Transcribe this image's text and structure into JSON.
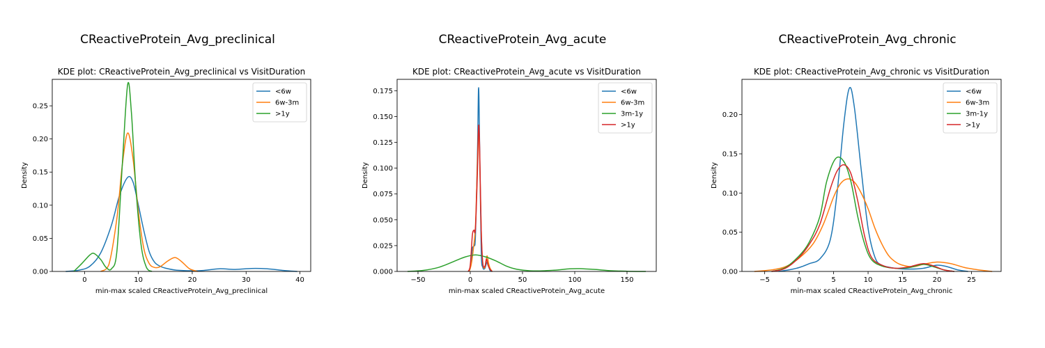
{
  "chart_data": [
    {
      "type": "line",
      "suptitle": "CReactiveProtein_Avg_preclinical",
      "title": "KDE plot:  CReactiveProtein_Avg_preclinical vs VisitDuration",
      "xlabel": "min-max scaled CReactiveProtein_Avg_preclinical",
      "ylabel": "Density",
      "xlim": [
        -6,
        42
      ],
      "ylim": [
        0,
        0.29
      ],
      "xticks": [
        0,
        10,
        20,
        30,
        40
      ],
      "xtick_labels": [
        "0",
        "10",
        "20",
        "30",
        "40"
      ],
      "yticks": [
        0,
        0.05,
        0.1,
        0.15,
        0.2,
        0.25
      ],
      "ytick_labels": [
        "0.00",
        "0.05",
        "0.10",
        "0.15",
        "0.20",
        "0.25"
      ],
      "grid": false,
      "legend_position": "upper right",
      "series": [
        {
          "name": "<6w",
          "color": "#1f77b4",
          "points": [
            [
              -3.5,
              0
            ],
            [
              -1,
              0.002
            ],
            [
              1,
              0.008
            ],
            [
              3,
              0.028
            ],
            [
              5,
              0.07
            ],
            [
              6.5,
              0.115
            ],
            [
              8,
              0.142
            ],
            [
              9,
              0.135
            ],
            [
              10,
              0.1
            ],
            [
              11,
              0.062
            ],
            [
              12,
              0.03
            ],
            [
              13,
              0.014
            ],
            [
              14,
              0.008
            ],
            [
              15,
              0.005
            ],
            [
              17,
              0.002
            ],
            [
              20,
              0.001
            ],
            [
              22,
              0.0015
            ],
            [
              25,
              0.004
            ],
            [
              28,
              0.003
            ],
            [
              31,
              0.0045
            ],
            [
              34,
              0.004
            ],
            [
              37,
              0.0015
            ],
            [
              39.5,
              0
            ]
          ]
        },
        {
          "name": "6w-3m",
          "color": "#ff7f0e",
          "points": [
            [
              3,
              0
            ],
            [
              4.5,
              0.01
            ],
            [
              6,
              0.08
            ],
            [
              7,
              0.16
            ],
            [
              8,
              0.209
            ],
            [
              9,
              0.17
            ],
            [
              10,
              0.09
            ],
            [
              11,
              0.035
            ],
            [
              12,
              0.012
            ],
            [
              13,
              0.006
            ],
            [
              14,
              0.007
            ],
            [
              15.5,
              0.016
            ],
            [
              16.8,
              0.021
            ],
            [
              18,
              0.015
            ],
            [
              19.5,
              0.004
            ],
            [
              21,
              0
            ]
          ]
        },
        {
          "name": ">1y",
          "color": "#2ca02c",
          "points": [
            [
              -2,
              0
            ],
            [
              -0.5,
              0.012
            ],
            [
              1,
              0.025
            ],
            [
              1.8,
              0.027
            ],
            [
              3,
              0.018
            ],
            [
              4,
              0.006
            ],
            [
              5,
              0.004
            ],
            [
              6,
              0.03
            ],
            [
              7,
              0.16
            ],
            [
              8,
              0.282
            ],
            [
              8.7,
              0.24
            ],
            [
              9.5,
              0.13
            ],
            [
              10.5,
              0.04
            ],
            [
              11.5,
              0.006
            ],
            [
              12.5,
              0
            ]
          ]
        }
      ]
    },
    {
      "type": "line",
      "suptitle": "CReactiveProtein_Avg_acute",
      "title": "KDE plot:  CReactiveProtein_Avg_acute vs VisitDuration",
      "xlabel": "min-max scaled CReactiveProtein_Avg_acute",
      "ylabel": "Density",
      "xlim": [
        -70,
        178
      ],
      "ylim": [
        0,
        0.186
      ],
      "xticks": [
        -50,
        0,
        50,
        100,
        150
      ],
      "xtick_labels": [
        "−50",
        "0",
        "50",
        "100",
        "150"
      ],
      "yticks": [
        0,
        0.025,
        0.05,
        0.075,
        0.1,
        0.125,
        0.15,
        0.175
      ],
      "ytick_labels": [
        "0.000",
        "0.025",
        "0.050",
        "0.075",
        "0.100",
        "0.125",
        "0.150",
        "0.175"
      ],
      "grid": false,
      "legend_position": "upper right",
      "series": [
        {
          "name": "<6w",
          "color": "#1f77b4",
          "points": [
            [
              -2,
              0
            ],
            [
              0,
              0.003
            ],
            [
              2,
              0.022
            ],
            [
              3.5,
              0.025
            ],
            [
              5,
              0.035
            ],
            [
              7,
              0.12
            ],
            [
              8,
              0.178
            ],
            [
              9,
              0.12
            ],
            [
              10.5,
              0.02
            ],
            [
              12,
              0.004
            ],
            [
              14,
              0.003
            ],
            [
              16,
              0.009
            ],
            [
              17.5,
              0.005
            ],
            [
              19,
              0.001
            ],
            [
              21,
              0
            ]
          ]
        },
        {
          "name": "6w-3m",
          "color": "#ff7f0e",
          "points": [
            [
              -1,
              0
            ],
            [
              1,
              0.007
            ],
            [
              3,
              0.022
            ],
            [
              5,
              0.045
            ],
            [
              7,
              0.11
            ],
            [
              8,
              0.138
            ],
            [
              9,
              0.11
            ],
            [
              10.5,
              0.04
            ],
            [
              12,
              0.008
            ],
            [
              14,
              0.004
            ],
            [
              16,
              0.015
            ],
            [
              17.5,
              0.008
            ],
            [
              19,
              0.003
            ],
            [
              21,
              0
            ]
          ]
        },
        {
          "name": "3m-1y",
          "color": "#2ca02c",
          "points": [
            [
              -60,
              0
            ],
            [
              -45,
              0.001
            ],
            [
              -30,
              0.004
            ],
            [
              -15,
              0.01
            ],
            [
              -5,
              0.014
            ],
            [
              5,
              0.016
            ],
            [
              15,
              0.014
            ],
            [
              25,
              0.01
            ],
            [
              35,
              0.005
            ],
            [
              45,
              0.002
            ],
            [
              60,
              0.0005
            ],
            [
              80,
              0.0012
            ],
            [
              95,
              0.0025
            ],
            [
              105,
              0.0027
            ],
            [
              118,
              0.002
            ],
            [
              135,
              0.0007
            ],
            [
              150,
              0.0002
            ],
            [
              168,
              0
            ]
          ]
        },
        {
          "name": ">1y",
          "color": "#d62728",
          "points": [
            [
              -2,
              0
            ],
            [
              0,
              0.006
            ],
            [
              2,
              0.035
            ],
            [
              3.5,
              0.04
            ],
            [
              5,
              0.042
            ],
            [
              7,
              0.1
            ],
            [
              8,
              0.141
            ],
            [
              9,
              0.12
            ],
            [
              10.5,
              0.04
            ],
            [
              12,
              0.008
            ],
            [
              14,
              0.005
            ],
            [
              15.5,
              0.012
            ],
            [
              17,
              0.006
            ],
            [
              19,
              0.002
            ],
            [
              21,
              0
            ]
          ]
        }
      ]
    },
    {
      "type": "line",
      "suptitle": "CReactiveProtein_Avg_chronic",
      "title": "KDE plot:  CReactiveProtein_Avg_chronic vs VisitDuration",
      "xlabel": "min-max scaled CReactiveProtein_Avg_chronic",
      "ylabel": "Density",
      "xlim": [
        -8.3,
        29.3
      ],
      "ylim": [
        0,
        0.245
      ],
      "xticks": [
        -5,
        0,
        5,
        10,
        15,
        20,
        25
      ],
      "xtick_labels": [
        "−5",
        "0",
        "5",
        "10",
        "15",
        "20",
        "25"
      ],
      "yticks": [
        0,
        0.05,
        0.1,
        0.15,
        0.2
      ],
      "ytick_labels": [
        "0.00",
        "0.05",
        "0.10",
        "0.15",
        "0.20"
      ],
      "grid": false,
      "legend_position": "upper right",
      "series": [
        {
          "name": "<6w",
          "color": "#1f77b4",
          "points": [
            [
              -3,
              0
            ],
            [
              -1.5,
              0.002
            ],
            [
              0,
              0.005
            ],
            [
              1.5,
              0.01
            ],
            [
              3,
              0.016
            ],
            [
              4.5,
              0.04
            ],
            [
              5.5,
              0.1
            ],
            [
              6.5,
              0.19
            ],
            [
              7.3,
              0.234
            ],
            [
              8,
              0.21
            ],
            [
              9,
              0.13
            ],
            [
              10,
              0.055
            ],
            [
              11,
              0.018
            ],
            [
              12,
              0.008
            ],
            [
              14,
              0.004
            ],
            [
              16,
              0.003
            ],
            [
              18,
              0.004
            ],
            [
              20,
              0.008
            ],
            [
              21.5,
              0.006
            ],
            [
              23,
              0.002
            ],
            [
              24.5,
              0
            ]
          ]
        },
        {
          "name": "6w-3m",
          "color": "#ff7f0e",
          "points": [
            [
              -6.5,
              0
            ],
            [
              -4,
              0.002
            ],
            [
              -2,
              0.006
            ],
            [
              0,
              0.017
            ],
            [
              2,
              0.035
            ],
            [
              3.5,
              0.06
            ],
            [
              5,
              0.095
            ],
            [
              6,
              0.112
            ],
            [
              7,
              0.118
            ],
            [
              8,
              0.114
            ],
            [
              9,
              0.1
            ],
            [
              10,
              0.08
            ],
            [
              11,
              0.055
            ],
            [
              12,
              0.035
            ],
            [
              13,
              0.02
            ],
            [
              14,
              0.012
            ],
            [
              15,
              0.008
            ],
            [
              16.5,
              0.006
            ],
            [
              18,
              0.009
            ],
            [
              20,
              0.012
            ],
            [
              22,
              0.01
            ],
            [
              24,
              0.005
            ],
            [
              26,
              0.002
            ],
            [
              28,
              0
            ]
          ]
        },
        {
          "name": "3m-1y",
          "color": "#2ca02c",
          "points": [
            [
              -4,
              0
            ],
            [
              -2,
              0.005
            ],
            [
              0,
              0.02
            ],
            [
              1.5,
              0.038
            ],
            [
              3,
              0.07
            ],
            [
              4,
              0.115
            ],
            [
              5.3,
              0.144
            ],
            [
              6.5,
              0.14
            ],
            [
              7.5,
              0.115
            ],
            [
              8.5,
              0.07
            ],
            [
              9.5,
              0.035
            ],
            [
              10.5,
              0.015
            ],
            [
              12,
              0.007
            ],
            [
              14,
              0.004
            ],
            [
              16,
              0.005
            ],
            [
              18,
              0.009
            ],
            [
              19.5,
              0.006
            ],
            [
              21,
              0.002
            ],
            [
              22.5,
              0
            ]
          ]
        },
        {
          "name": ">1y",
          "color": "#d62728",
          "points": [
            [
              -4,
              0
            ],
            [
              -2,
              0.004
            ],
            [
              0,
              0.018
            ],
            [
              1.5,
              0.035
            ],
            [
              3,
              0.06
            ],
            [
              4.5,
              0.105
            ],
            [
              5.5,
              0.128
            ],
            [
              6.5,
              0.136
            ],
            [
              7.5,
              0.125
            ],
            [
              8.5,
              0.09
            ],
            [
              9.5,
              0.045
            ],
            [
              10.5,
              0.018
            ],
            [
              12,
              0.008
            ],
            [
              14,
              0.004
            ],
            [
              16,
              0.006
            ],
            [
              18,
              0.01
            ],
            [
              19.5,
              0.007
            ],
            [
              21,
              0.002
            ],
            [
              22.5,
              0
            ]
          ]
        }
      ]
    }
  ]
}
